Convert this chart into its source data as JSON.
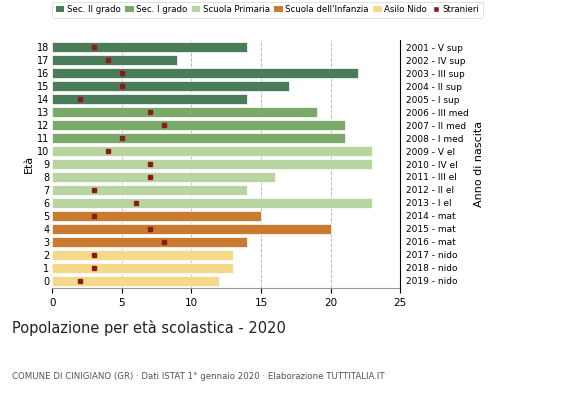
{
  "ages": [
    18,
    17,
    16,
    15,
    14,
    13,
    12,
    11,
    10,
    9,
    8,
    7,
    6,
    5,
    4,
    3,
    2,
    1,
    0
  ],
  "years": [
    "2001 - V sup",
    "2002 - IV sup",
    "2003 - III sup",
    "2004 - II sup",
    "2005 - I sup",
    "2006 - III med",
    "2007 - II med",
    "2008 - I med",
    "2009 - V el",
    "2010 - IV el",
    "2011 - III el",
    "2012 - II el",
    "2013 - I el",
    "2014 - mat",
    "2015 - mat",
    "2016 - mat",
    "2017 - nido",
    "2018 - nido",
    "2019 - nido"
  ],
  "values": [
    14,
    9,
    22,
    17,
    14,
    19,
    21,
    21,
    23,
    23,
    16,
    14,
    23,
    15,
    20,
    14,
    13,
    13,
    12
  ],
  "stranieri": [
    3,
    4,
    5,
    5,
    2,
    7,
    8,
    5,
    4,
    7,
    7,
    3,
    6,
    3,
    7,
    8,
    3,
    3,
    2
  ],
  "bar_colors": [
    "#4a7c59",
    "#4a7c59",
    "#4a7c59",
    "#4a7c59",
    "#4a7c59",
    "#7aaa6a",
    "#7aaa6a",
    "#7aaa6a",
    "#b8d4a0",
    "#b8d4a0",
    "#b8d4a0",
    "#b8d4a0",
    "#b8d4a0",
    "#c97c30",
    "#c97c30",
    "#c97c30",
    "#f5d98b",
    "#f5d98b",
    "#f5d98b"
  ],
  "color_sec2": "#4a7c59",
  "color_sec1": "#7aaa6a",
  "color_prim": "#b8d4a0",
  "color_inf": "#c97c30",
  "color_nido": "#f5d98b",
  "color_stranieri": "#8b1a1a",
  "title": "Popolazione per età scolastica - 2020",
  "subtitle": "COMUNE DI CINIGIANO (GR) · Dati ISTAT 1° gennaio 2020 · Elaborazione TUTTITALIA.IT",
  "ylabel": "Età",
  "ylabel2": "Anno di nascita",
  "xlim": [
    0,
    25
  ],
  "legend_labels": [
    "Sec. II grado",
    "Sec. I grado",
    "Scuola Primaria",
    "Scuola dell'Infanzia",
    "Asilo Nido",
    "Stranieri"
  ],
  "background_color": "#ffffff",
  "gridline_color": "#bbbbbb"
}
